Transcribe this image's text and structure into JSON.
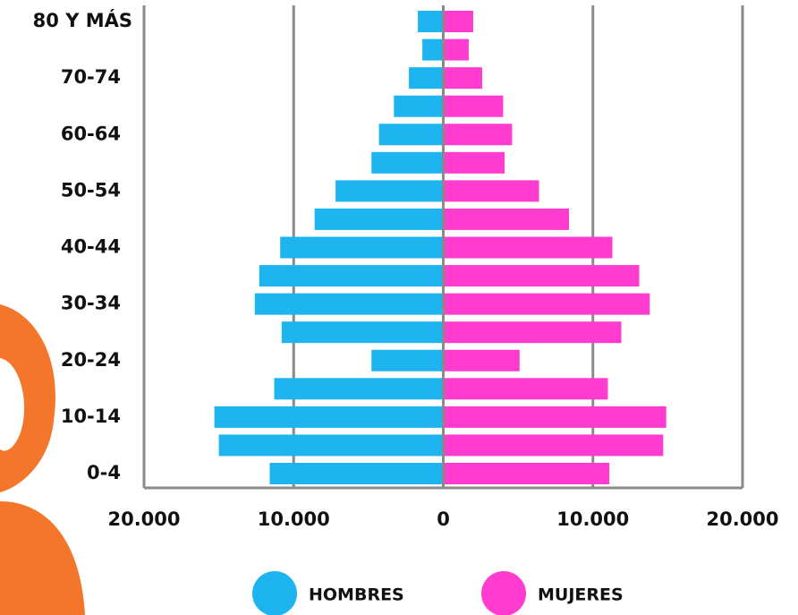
{
  "chart_data": {
    "type": "population-pyramid",
    "categories": [
      "0-4",
      null,
      "10-14",
      null,
      "20-24",
      null,
      "30-34",
      null,
      "40-44",
      null,
      "50-54",
      null,
      "60-64",
      null,
      "70-74",
      null,
      "80 Y MÁS"
    ],
    "series": [
      {
        "name": "HOMBRES",
        "color": "#1eb4ef",
        "values": [
          -11600,
          -15000,
          -15300,
          -11300,
          -4800,
          -10800,
          -12600,
          -12300,
          -10900,
          -8600,
          -7200,
          -4800,
          -4300,
          -3300,
          -2300,
          -1400,
          -1700
        ]
      },
      {
        "name": "MUJERES",
        "color": "#ff3ccf",
        "values": [
          11100,
          14700,
          14900,
          11000,
          5100,
          11900,
          13800,
          13100,
          11300,
          8400,
          6400,
          4100,
          4600,
          4000,
          2600,
          1700,
          2000
        ]
      }
    ],
    "xlim": [
      -20000,
      20000
    ],
    "xticks": [
      {
        "value": -20000,
        "label": "20.000"
      },
      {
        "value": -10000,
        "label": "10.000"
      },
      0,
      {
        "value": 10000,
        "label": "10.000"
      },
      {
        "value": 20000,
        "label": "20.000"
      }
    ],
    "grid": true
  }
}
